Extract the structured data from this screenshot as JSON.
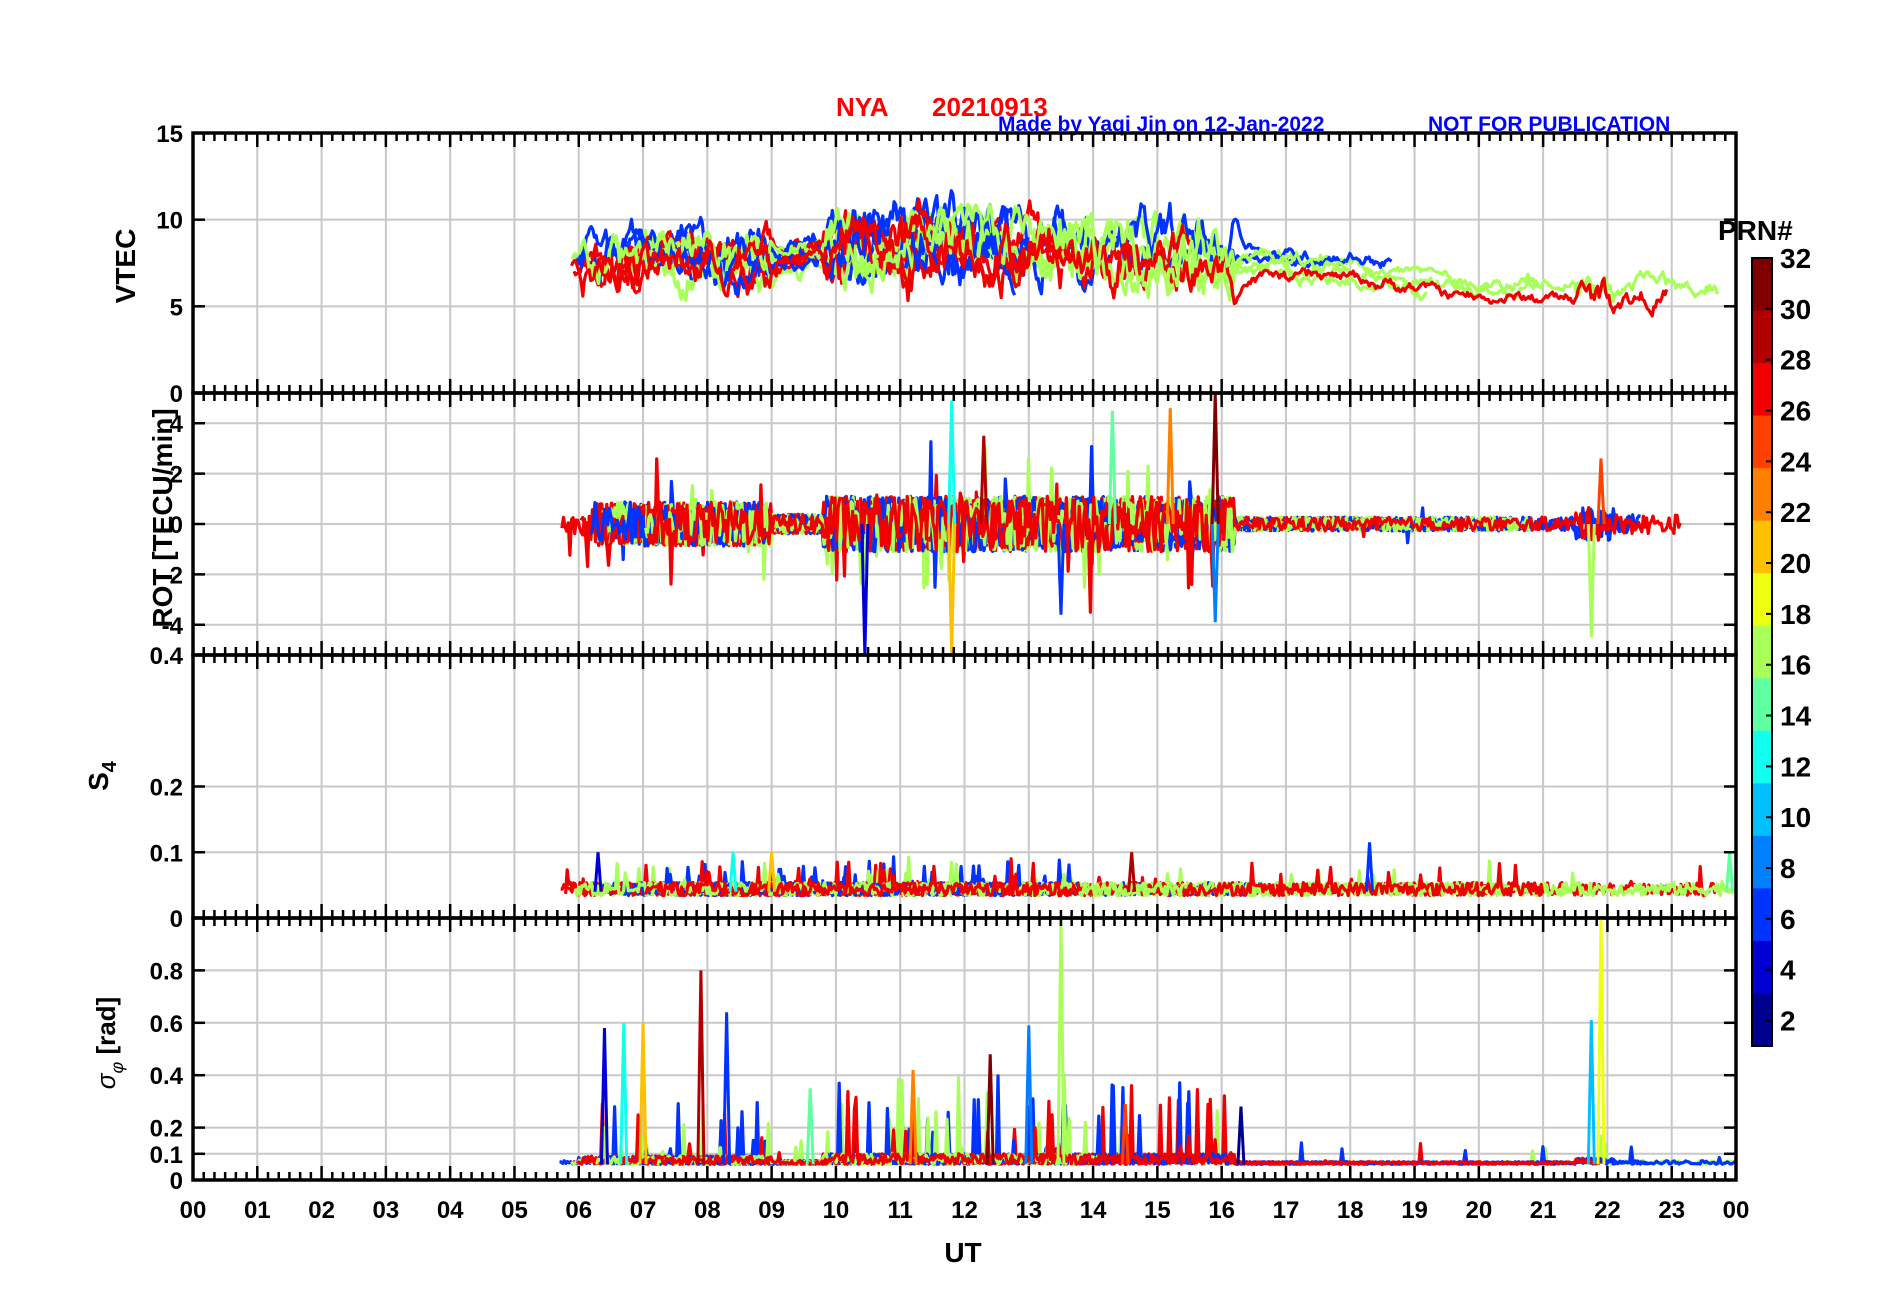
{
  "header": {
    "station": "NYA",
    "date": "20210913",
    "credit": "Made by Yaqi Jin on 12-Jan-2022",
    "notice": "NOT FOR PUBLICATION"
  },
  "colors": {
    "title": "#ff0000",
    "credit": "#0000ff",
    "grid": "#c8c8c8",
    "axis": "#000000"
  },
  "chart_data": [
    {
      "type": "line",
      "panel": "VTEC",
      "ylabel": "VTEC",
      "ylim": [
        0,
        15
      ],
      "yticks": [
        "0",
        "5",
        "10",
        "15"
      ],
      "ytick_values": [
        0,
        5,
        10,
        15
      ],
      "xlim": [
        0,
        24
      ],
      "data_start_hour": 5.7,
      "baseline": [
        [
          5.7,
          7.6
        ],
        [
          7,
          8
        ],
        [
          9,
          8
        ],
        [
          10,
          8.8
        ],
        [
          11,
          9.2
        ],
        [
          12,
          9.3
        ],
        [
          13,
          8.8
        ],
        [
          14,
          8.5
        ],
        [
          15,
          8.2
        ],
        [
          16,
          8.0
        ],
        [
          17,
          7.6
        ],
        [
          18,
          7.6
        ],
        [
          19,
          7.0
        ],
        [
          20,
          6.4
        ],
        [
          21,
          6.4
        ],
        [
          22,
          6.6
        ],
        [
          23,
          6.4
        ],
        [
          24,
          5.8
        ]
      ],
      "series_note": "Multiple PRN satellite traces (PRN 1-32), colored by PRN number"
    },
    {
      "type": "line",
      "panel": "ROT",
      "ylabel": "ROT [TECU/min]",
      "ylim": [
        -5.2,
        5.2
      ],
      "yticks": [
        "-4",
        "-2",
        "0",
        "2",
        "4"
      ],
      "ytick_values": [
        -4,
        -2,
        0,
        2,
        4
      ],
      "xlim": [
        0,
        24
      ],
      "data_start_hour": 5.7,
      "spikes": [
        {
          "hour": 10.45,
          "value": -5.2
        },
        {
          "hour": 11.8,
          "value": 4.9
        },
        {
          "hour": 11.8,
          "value": -5.2
        },
        {
          "hour": 12.3,
          "value": 3.5
        },
        {
          "hour": 13.5,
          "value": -3.6
        },
        {
          "hour": 14.3,
          "value": 4.5
        },
        {
          "hour": 15.2,
          "value": 4.6
        },
        {
          "hour": 15.9,
          "value": 5.2
        },
        {
          "hour": 15.9,
          "value": -3.9
        },
        {
          "hour": 21.75,
          "value": -4.5
        },
        {
          "hour": 21.9,
          "value": 2.6
        }
      ]
    },
    {
      "type": "line",
      "panel": "S4",
      "ylabel": "S",
      "ylabel_sub": "4",
      "ylim": [
        0,
        0.4
      ],
      "yticks": [
        "0",
        "0.1",
        "0.2",
        "0.4"
      ],
      "ytick_values": [
        0,
        0.1,
        0.2,
        0.4
      ],
      "xlim": [
        0,
        24
      ],
      "data_start_hour": 5.7,
      "baseline_value": 0.04,
      "peaks": [
        {
          "hour": 6.3,
          "value": 0.1
        },
        {
          "hour": 8.4,
          "value": 0.1
        },
        {
          "hour": 9.0,
          "value": 0.1
        },
        {
          "hour": 14.6,
          "value": 0.1
        },
        {
          "hour": 18.3,
          "value": 0.115
        },
        {
          "hour": 23.9,
          "value": 0.1
        }
      ]
    },
    {
      "type": "line",
      "panel": "sigma_phi",
      "ylabel_symbol": "σ",
      "ylabel_sub": "φ",
      "ylabel_unit": " [rad]",
      "ylim": [
        0,
        1.0
      ],
      "yticks": [
        "0",
        "0.1",
        "0.2",
        "0.4",
        "0.6",
        "0.8"
      ],
      "ytick_values": [
        0,
        0.1,
        0.2,
        0.4,
        0.6,
        0.8
      ],
      "xlim": [
        0,
        24
      ],
      "xticks": [
        "00",
        "01",
        "02",
        "03",
        "04",
        "05",
        "06",
        "07",
        "08",
        "09",
        "10",
        "11",
        "12",
        "13",
        "14",
        "15",
        "16",
        "17",
        "18",
        "19",
        "20",
        "21",
        "22",
        "23",
        "00"
      ],
      "xlabel": "UT",
      "data_start_hour": 5.7,
      "peaks": [
        {
          "hour": 6.4,
          "value": 0.58
        },
        {
          "hour": 6.7,
          "value": 0.6
        },
        {
          "hour": 7.0,
          "value": 0.6
        },
        {
          "hour": 7.9,
          "value": 0.8
        },
        {
          "hour": 8.3,
          "value": 0.64
        },
        {
          "hour": 9.6,
          "value": 0.35
        },
        {
          "hour": 11.2,
          "value": 0.42
        },
        {
          "hour": 12.4,
          "value": 0.48
        },
        {
          "hour": 13.0,
          "value": 0.59
        },
        {
          "hour": 13.5,
          "value": 1.0
        },
        {
          "hour": 14.5,
          "value": 0.29
        },
        {
          "hour": 16.3,
          "value": 0.28
        },
        {
          "hour": 21.75,
          "value": 0.61
        },
        {
          "hour": 21.9,
          "value": 1.0
        }
      ]
    }
  ],
  "colorbar": {
    "title": "PRN#",
    "range": [
      1,
      32
    ],
    "ticks": [
      "2",
      "4",
      "6",
      "8",
      "10",
      "12",
      "14",
      "16",
      "18",
      "20",
      "22",
      "24",
      "26",
      "28",
      "30",
      "32"
    ],
    "tick_values": [
      2,
      4,
      6,
      8,
      10,
      12,
      14,
      16,
      18,
      20,
      22,
      24,
      26,
      28,
      30,
      32
    ]
  },
  "palette": [
    "#00008f",
    "#0000d4",
    "#0033ff",
    "#0080ff",
    "#00c0ff",
    "#10ffef",
    "#60ff9f",
    "#a8ff57",
    "#efff10",
    "#ffc000",
    "#ff8000",
    "#ff4000",
    "#f00000",
    "#b00000",
    "#800000"
  ]
}
